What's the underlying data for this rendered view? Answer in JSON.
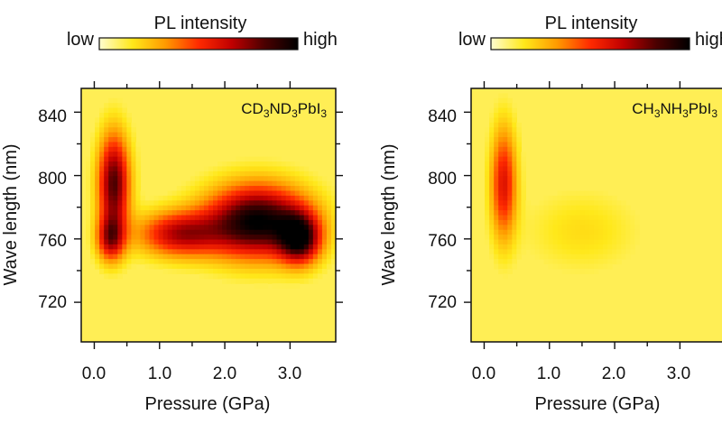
{
  "colors": {
    "colormap": [
      "#fffcd0",
      "#ffe81a",
      "#ff9a00",
      "#ff2a00",
      "#c00000",
      "#4a0000",
      "#000000"
    ],
    "background_low": "#ffee55",
    "axis": "#111111"
  },
  "chart_data": [
    {
      "type": "heatmap",
      "title": "",
      "sample_label": {
        "base": [
          "CD",
          "ND",
          "PbI"
        ],
        "subscripts": [
          "3",
          "3",
          "3"
        ]
      },
      "xlabel": "Pressure (GPa)",
      "ylabel": "Wave length (nm)",
      "xlim": [
        -0.2,
        3.7
      ],
      "ylim": [
        695,
        855
      ],
      "x_ticks": [
        0.0,
        1.0,
        2.0,
        3.0
      ],
      "x_tick_labels": [
        "0.0",
        "1.0",
        "2.0",
        "3.0"
      ],
      "y_ticks": [
        720,
        760,
        800,
        840
      ],
      "y_tick_labels": [
        "720",
        "760",
        "800",
        "840"
      ],
      "colorbar": {
        "label": "PL intensity",
        "low": "low",
        "high": "high"
      },
      "features": [
        {
          "pressure_gpa": 0.3,
          "wavelength_nm": 795,
          "intensity": 0.82,
          "pressure_spread": 0.17,
          "wavelength_spread": 22
        },
        {
          "pressure_gpa": 0.25,
          "wavelength_nm": 760,
          "intensity": 0.55,
          "pressure_spread": 0.15,
          "wavelength_spread": 10
        },
        {
          "pressure_gpa": 1.3,
          "wavelength_nm": 763,
          "intensity": 0.62,
          "pressure_spread": 0.45,
          "wavelength_spread": 10
        },
        {
          "pressure_gpa": 2.5,
          "wavelength_nm": 771,
          "intensity": 1.0,
          "pressure_spread": 0.55,
          "wavelength_spread": 16
        },
        {
          "pressure_gpa": 3.15,
          "wavelength_nm": 760,
          "intensity": 0.78,
          "pressure_spread": 0.22,
          "wavelength_spread": 11
        }
      ]
    },
    {
      "type": "heatmap",
      "title": "",
      "sample_label": {
        "base": [
          "CH",
          "NH",
          "PbI"
        ],
        "subscripts": [
          "3",
          "3",
          "3"
        ]
      },
      "xlabel": "Pressure (GPa)",
      "ylabel": "Wave length (nm)",
      "xlim": [
        -0.2,
        3.7
      ],
      "ylim": [
        695,
        855
      ],
      "x_ticks": [
        0.0,
        1.0,
        2.0,
        3.0
      ],
      "x_tick_labels": [
        "0.0",
        "1.0",
        "2.0",
        "3.0"
      ],
      "y_ticks": [
        720,
        760,
        800,
        840
      ],
      "y_tick_labels": [
        "720",
        "760",
        "800",
        "840"
      ],
      "colorbar": {
        "label": "PL intensity",
        "low": "low",
        "high": "high"
      },
      "features": [
        {
          "pressure_gpa": 0.3,
          "wavelength_nm": 795,
          "intensity": 0.55,
          "pressure_spread": 0.14,
          "wavelength_spread": 25
        },
        {
          "pressure_gpa": 1.5,
          "wavelength_nm": 765,
          "intensity": 0.12,
          "pressure_spread": 0.6,
          "wavelength_spread": 18
        }
      ]
    }
  ]
}
